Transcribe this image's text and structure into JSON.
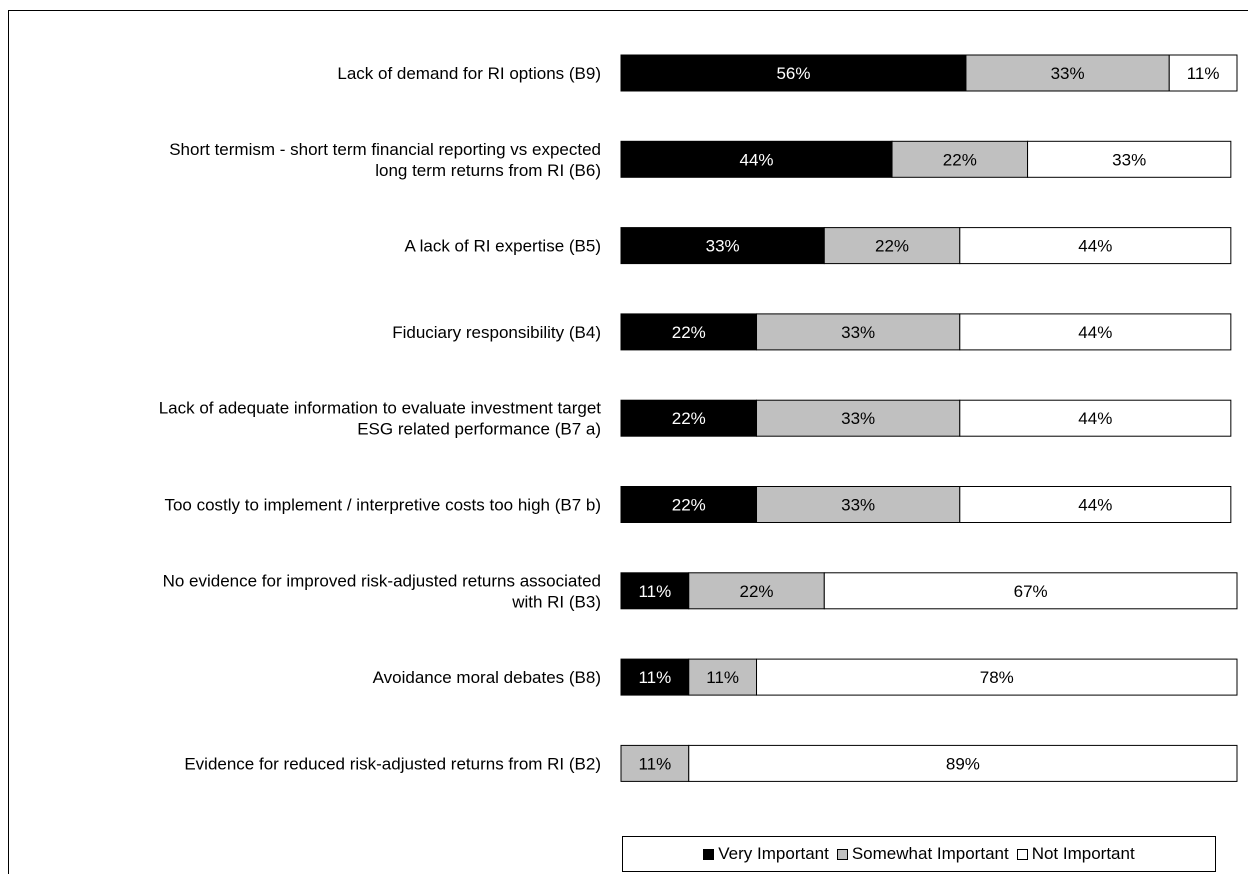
{
  "chart_data": {
    "type": "bar",
    "orientation": "horizontal",
    "stacked": true,
    "normalized_percent": true,
    "categories": [
      "Lack of demand for RI options (B9)",
      "Short termism - short term financial reporting vs expected long term returns from RI (B6)",
      "A lack of RI expertise (B5)",
      "Fiduciary responsibility (B4)",
      "Lack of adequate information to evaluate investment target ESG related performance (B7 a)",
      "Too costly to implement / interpretive costs too high (B7 b)",
      "No evidence for improved risk-adjusted returns associated with RI (B3)",
      "Avoidance moral debates (B8)",
      "Evidence for reduced risk-adjusted returns from RI (B2)"
    ],
    "category_lines": [
      [
        "Lack of demand for RI options (B9)"
      ],
      [
        "Short termism - short term financial reporting vs expected",
        "long term returns from RI (B6)"
      ],
      [
        "A lack of RI expertise (B5)"
      ],
      [
        "Fiduciary responsibility (B4)"
      ],
      [
        "Lack of adequate information to evaluate investment target",
        "ESG related performance (B7 a)"
      ],
      [
        "Too costly to implement / interpretive costs too high (B7 b)"
      ],
      [
        "No evidence for improved risk-adjusted returns associated",
        "with RI (B3)"
      ],
      [
        "Avoidance moral debates (B8)"
      ],
      [
        "Evidence for reduced risk-adjusted returns from RI (B2)"
      ]
    ],
    "series": [
      {
        "name": "Very Important",
        "color": "#000000",
        "label_color": "#ffffff",
        "values": [
          56,
          44,
          33,
          22,
          22,
          22,
          11,
          11,
          0
        ]
      },
      {
        "name": "Somewhat Important",
        "color": "#c0c0c0",
        "label_color": "#000000",
        "values": [
          33,
          22,
          22,
          33,
          33,
          33,
          22,
          11,
          11
        ]
      },
      {
        "name": "Not Important",
        "color": "#ffffff",
        "label_color": "#000000",
        "values": [
          11,
          33,
          44,
          44,
          44,
          44,
          67,
          78,
          89
        ]
      }
    ],
    "xlim": [
      0,
      100
    ],
    "value_suffix": "%",
    "legend_position": "bottom",
    "grid": false
  }
}
